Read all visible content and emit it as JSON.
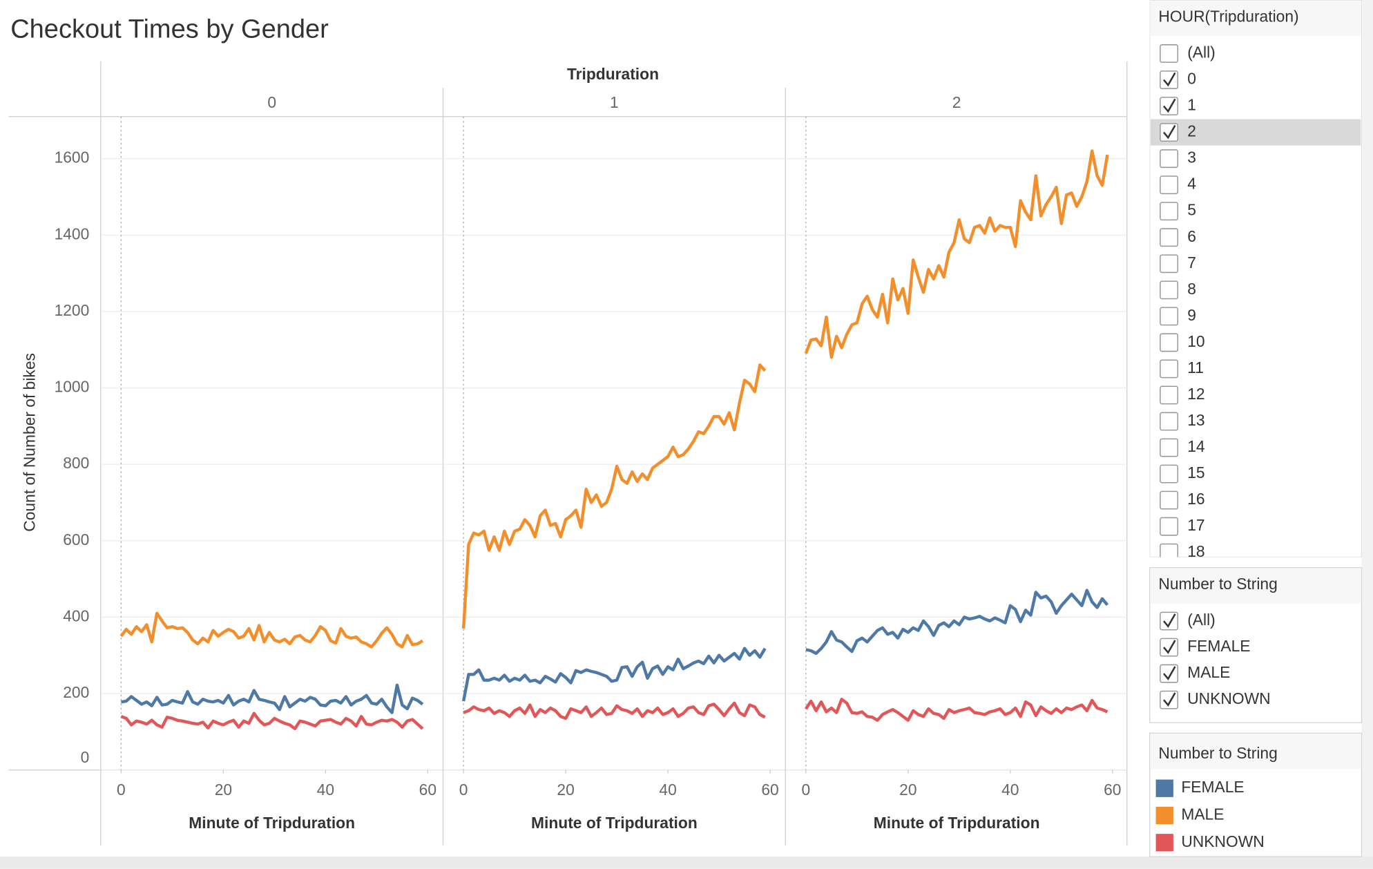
{
  "chart_data": {
    "type": "line",
    "title": "Checkout Times by Gender",
    "facet_title": "Tripduration",
    "x_label": "Minute of Tripduration",
    "y_label": "Count of Number of bikes",
    "x": [
      0,
      1,
      2,
      3,
      4,
      5,
      6,
      7,
      8,
      9,
      10,
      11,
      12,
      13,
      14,
      15,
      16,
      17,
      18,
      19,
      20,
      21,
      22,
      23,
      24,
      25,
      26,
      27,
      28,
      29,
      30,
      31,
      32,
      33,
      34,
      35,
      36,
      37,
      38,
      39,
      40,
      41,
      42,
      43,
      44,
      45,
      46,
      47,
      48,
      49,
      50,
      51,
      52,
      53,
      54,
      55,
      56,
      57,
      58,
      59
    ],
    "xlim": [
      -4,
      63
    ],
    "xticks": [
      0,
      20,
      40,
      60
    ],
    "ylim": [
      0,
      1710
    ],
    "yticks": [
      0,
      200,
      400,
      600,
      800,
      1000,
      1200,
      1400,
      1600
    ],
    "grid": true,
    "legend_title": "Number to String",
    "facets": [
      {
        "label": "0",
        "series": [
          {
            "name": "FEMALE",
            "color": "#4e79a7",
            "values": [
              178,
              180,
              192,
              182,
              172,
              178,
              168,
              190,
              170,
              172,
              182,
              178,
              175,
              205,
              178,
              172,
              185,
              180,
              178,
              182,
              175,
              195,
              170,
              180,
              185,
              178,
              208,
              185,
              182,
              178,
              175,
              158,
              192,
              165,
              175,
              185,
              180,
              190,
              185,
              170,
              168,
              180,
              182,
              175,
              192,
              170,
              180,
              185,
              195,
              175,
              172,
              185,
              165,
              150,
              222,
              170,
              160,
              188,
              182,
              172
            ]
          },
          {
            "name": "MALE",
            "color": "#f28e2b",
            "values": [
              350,
              368,
              355,
              375,
              362,
              380,
              335,
              410,
              390,
              372,
              375,
              370,
              372,
              360,
              340,
              330,
              345,
              335,
              365,
              350,
              360,
              368,
              362,
              345,
              350,
              370,
              340,
              378,
              335,
              360,
              340,
              335,
              342,
              330,
              348,
              352,
              340,
              335,
              352,
              375,
              365,
              338,
              332,
              370,
              350,
              345,
              348,
              335,
              330,
              322,
              338,
              358,
              372,
              355,
              330,
              322,
              352,
              328,
              330,
              338
            ]
          },
          {
            "name": "UNKNOWN",
            "color": "#e15759",
            "values": [
              140,
              135,
              118,
              128,
              125,
              120,
              130,
              118,
              112,
              138,
              135,
              130,
              128,
              125,
              122,
              120,
              125,
              110,
              128,
              122,
              118,
              125,
              130,
              112,
              128,
              122,
              148,
              130,
              118,
              122,
              135,
              128,
              122,
              118,
              108,
              128,
              125,
              120,
              115,
              128,
              130,
              132,
              125,
              120,
              135,
              128,
              115,
              140,
              120,
              118,
              125,
              130,
              128,
              132,
              125,
              112,
              128,
              132,
              120,
              108
            ]
          }
        ]
      },
      {
        "label": "1",
        "series": [
          {
            "name": "FEMALE",
            "color": "#4e79a7",
            "values": [
              180,
              250,
              250,
              262,
              235,
              235,
              240,
              235,
              248,
              232,
              240,
              235,
              248,
              232,
              235,
              228,
              245,
              238,
              230,
              252,
              242,
              228,
              260,
              255,
              262,
              258,
              255,
              250,
              245,
              232,
              235,
              268,
              270,
              245,
              270,
              282,
              240,
              265,
              272,
              250,
              270,
              262,
              290,
              265,
              272,
              280,
              285,
              278,
              298,
              280,
              300,
              285,
              295,
              305,
              290,
              318,
              300,
              312,
              295,
              318
            ]
          },
          {
            "name": "MALE",
            "color": "#f28e2b",
            "values": [
              370,
              590,
              620,
              615,
              625,
              575,
              610,
              575,
              625,
              590,
              625,
              630,
              655,
              640,
              610,
              665,
              680,
              640,
              645,
              610,
              655,
              665,
              680,
              635,
              735,
              700,
              720,
              690,
              700,
              735,
              795,
              760,
              750,
              780,
              755,
              775,
              760,
              790,
              800,
              810,
              820,
              845,
              820,
              825,
              840,
              860,
              885,
              880,
              900,
              925,
              925,
              905,
              935,
              890,
              960,
              1020,
              1010,
              990,
              1060,
              1045
            ]
          },
          {
            "name": "UNKNOWN",
            "color": "#e15759",
            "values": [
              150,
              155,
              165,
              158,
              155,
              162,
              148,
              155,
              150,
              140,
              155,
              162,
              148,
              170,
              140,
              158,
              150,
              162,
              155,
              140,
              135,
              160,
              155,
              150,
              165,
              140,
              150,
              162,
              145,
              148,
              168,
              158,
              155,
              148,
              160,
              140,
              155,
              150,
              162,
              145,
              150,
              160,
              140,
              148,
              162,
              165,
              150,
              145,
              168,
              172,
              158,
              142,
              160,
              175,
              150,
              142,
              170,
              165,
              145,
              138
            ]
          }
        ]
      },
      {
        "label": "2",
        "series": [
          {
            "name": "FEMALE",
            "color": "#4e79a7",
            "values": [
              315,
              312,
              305,
              318,
              335,
              362,
              340,
              335,
              322,
              310,
              338,
              345,
              335,
              350,
              365,
              372,
              355,
              360,
              345,
              368,
              360,
              372,
              365,
              390,
              375,
              352,
              378,
              385,
              375,
              390,
              380,
              400,
              395,
              398,
              402,
              395,
              390,
              398,
              392,
              385,
              430,
              420,
              388,
              418,
              405,
              465,
              450,
              455,
              440,
              410,
              430,
              445,
              460,
              445,
              430,
              470,
              440,
              425,
              448,
              432
            ]
          },
          {
            "name": "MALE",
            "color": "#f28e2b",
            "values": [
              1090,
              1125,
              1128,
              1110,
              1185,
              1080,
              1135,
              1105,
              1140,
              1165,
              1170,
              1220,
              1240,
              1205,
              1185,
              1245,
              1170,
              1285,
              1230,
              1260,
              1195,
              1335,
              1290,
              1250,
              1310,
              1285,
              1320,
              1290,
              1355,
              1380,
              1440,
              1390,
              1380,
              1420,
              1425,
              1405,
              1445,
              1410,
              1425,
              1420,
              1420,
              1370,
              1490,
              1460,
              1440,
              1555,
              1450,
              1480,
              1500,
              1525,
              1430,
              1505,
              1510,
              1475,
              1500,
              1540,
              1620,
              1555,
              1530,
              1610
            ]
          },
          {
            "name": "UNKNOWN",
            "color": "#e15759",
            "values": [
              160,
              180,
              155,
              178,
              152,
              162,
              150,
              185,
              175,
              150,
              148,
              152,
              140,
              138,
              130,
              145,
              152,
              158,
              150,
              140,
              130,
              155,
              145,
              140,
              160,
              148,
              145,
              135,
              158,
              150,
              155,
              158,
              162,
              150,
              148,
              145,
              152,
              155,
              160,
              145,
              150,
              162,
              140,
              178,
              170,
              142,
              165,
              155,
              148,
              160,
              150,
              162,
              158,
              165,
              170,
              155,
              182,
              162,
              158,
              152
            ]
          }
        ]
      }
    ]
  },
  "filters": [
    {
      "title": "HOUR(Tripduration)",
      "items": [
        {
          "label": "(All)",
          "checked": false
        },
        {
          "label": "0",
          "checked": true
        },
        {
          "label": "1",
          "checked": true
        },
        {
          "label": "2",
          "checked": true,
          "highlighted": true
        },
        {
          "label": "3",
          "checked": false
        },
        {
          "label": "4",
          "checked": false
        },
        {
          "label": "5",
          "checked": false
        },
        {
          "label": "6",
          "checked": false
        },
        {
          "label": "7",
          "checked": false
        },
        {
          "label": "8",
          "checked": false
        },
        {
          "label": "9",
          "checked": false
        },
        {
          "label": "10",
          "checked": false
        },
        {
          "label": "11",
          "checked": false
        },
        {
          "label": "12",
          "checked": false
        },
        {
          "label": "13",
          "checked": false
        },
        {
          "label": "14",
          "checked": false
        },
        {
          "label": "15",
          "checked": false
        },
        {
          "label": "16",
          "checked": false
        },
        {
          "label": "17",
          "checked": false
        },
        {
          "label": "18",
          "checked": false
        }
      ]
    },
    {
      "title": "Number to String",
      "items": [
        {
          "label": "(All)",
          "checked": true
        },
        {
          "label": "FEMALE",
          "checked": true
        },
        {
          "label": "MALE",
          "checked": true
        },
        {
          "label": "UNKNOWN",
          "checked": true
        }
      ]
    }
  ]
}
